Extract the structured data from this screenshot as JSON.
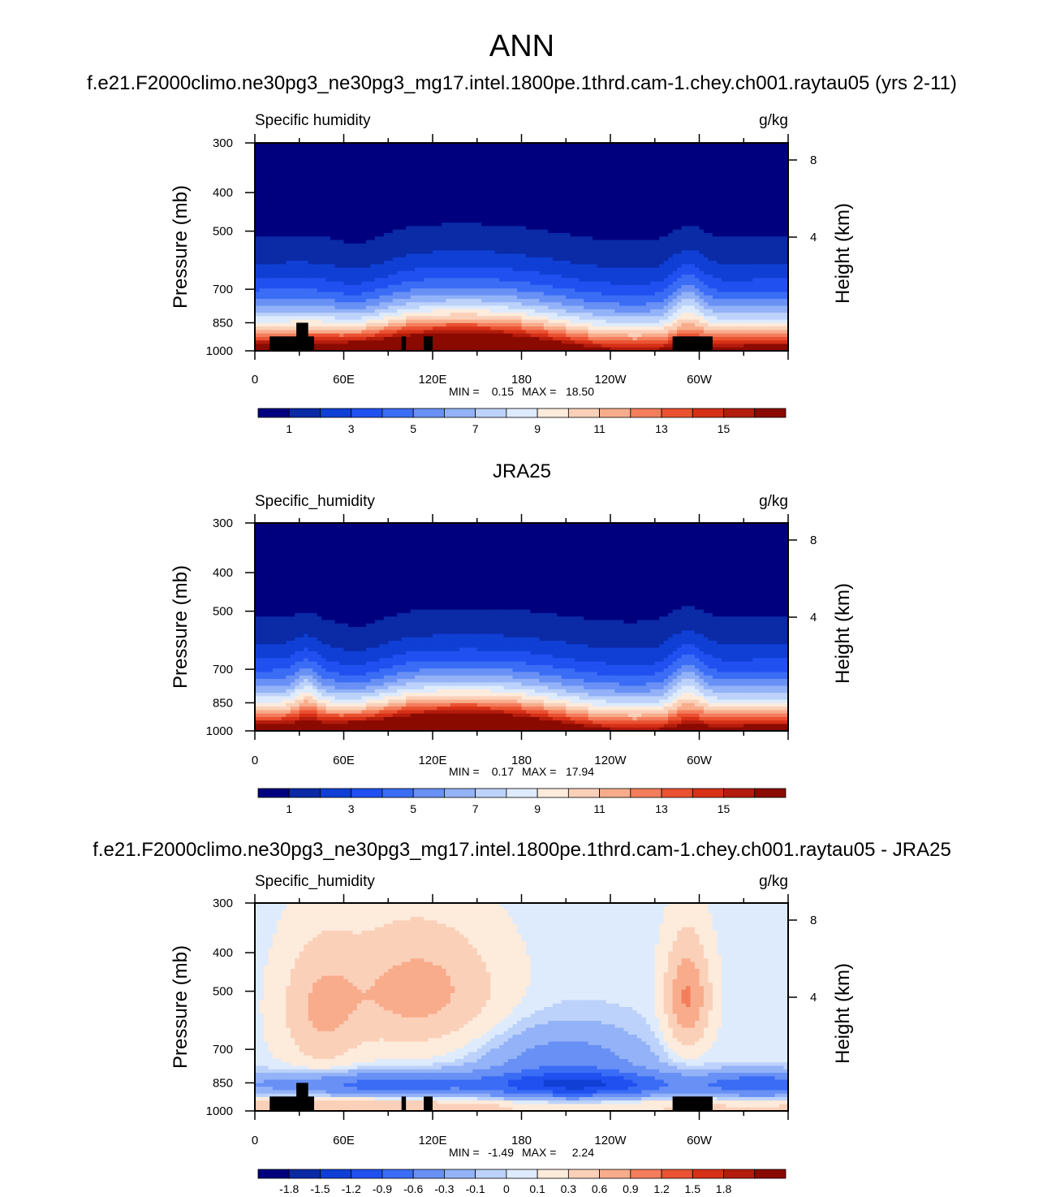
{
  "figure": {
    "title": "ANN"
  },
  "chart_data": [
    {
      "type": "contour",
      "title": "f.e21.F2000climo.ne30pg3_ne30pg3_mg17.intel.1800pe.1thrd.cam-1.chey.ch001.raytau05 (yrs 2-11)",
      "left_string": "Specific humidity",
      "right_string": "g/kg",
      "ylabel": "Pressure (mb)",
      "ylabel_right": "Height (km)",
      "xlim": [
        0,
        360
      ],
      "ylim": [
        1000,
        300
      ],
      "x_tick_labels": [
        "0",
        "60E",
        "120E",
        "180",
        "120W",
        "60W"
      ],
      "y_tick_labels": [
        "300",
        "400",
        "500",
        "700",
        "850",
        "1000"
      ],
      "y_right_tick_labels": [
        "8",
        "4"
      ],
      "min_label": "MIN =",
      "min_value": "0.15",
      "max_label": "MAX =",
      "max_value": "18.50",
      "colorbar_labels": [
        "1",
        "3",
        "5",
        "7",
        "9",
        "11",
        "13",
        "15"
      ],
      "levels": [
        0,
        1,
        2,
        3,
        4,
        5,
        6,
        7,
        8,
        9,
        10,
        11,
        12,
        13,
        14,
        15,
        16
      ]
    },
    {
      "type": "contour",
      "title": "JRA25",
      "left_string": "Specific_humidity",
      "right_string": "g/kg",
      "ylabel": "Pressure (mb)",
      "ylabel_right": "Height (km)",
      "xlim": [
        0,
        360
      ],
      "ylim": [
        1000,
        300
      ],
      "x_tick_labels": [
        "0",
        "60E",
        "120E",
        "180",
        "120W",
        "60W"
      ],
      "y_tick_labels": [
        "300",
        "400",
        "500",
        "700",
        "850",
        "1000"
      ],
      "y_right_tick_labels": [
        "8",
        "4"
      ],
      "min_label": "MIN =",
      "min_value": "0.17",
      "max_label": "MAX =",
      "max_value": "17.94",
      "colorbar_labels": [
        "1",
        "3",
        "5",
        "7",
        "9",
        "11",
        "13",
        "15"
      ],
      "levels": [
        0,
        1,
        2,
        3,
        4,
        5,
        6,
        7,
        8,
        9,
        10,
        11,
        12,
        13,
        14,
        15,
        16
      ]
    },
    {
      "type": "contour",
      "title": "f.e21.F2000climo.ne30pg3_ne30pg3_mg17.intel.1800pe.1thrd.cam-1.chey.ch001.raytau05 - JRA25",
      "left_string": "Specific_humidity",
      "right_string": "g/kg",
      "ylabel": "Pressure (mb)",
      "ylabel_right": "Height (km)",
      "xlim": [
        0,
        360
      ],
      "ylim": [
        1000,
        300
      ],
      "x_tick_labels": [
        "0",
        "60E",
        "120E",
        "180",
        "120W",
        "60W"
      ],
      "y_tick_labels": [
        "300",
        "400",
        "500",
        "700",
        "850",
        "1000"
      ],
      "y_right_tick_labels": [
        "8",
        "4"
      ],
      "min_label": "MIN =",
      "min_value": "-1.49",
      "max_label": "MAX =",
      "max_value": "2.24",
      "colorbar_labels": [
        "-1.8",
        "-1.5",
        "-1.2",
        "-0.9",
        "-0.6",
        "-0.3",
        "-0.1",
        "0",
        "0.1",
        "0.3",
        "0.6",
        "0.9",
        "1.2",
        "1.5",
        "1.8"
      ],
      "levels": [
        -2.1,
        -1.8,
        -1.5,
        -1.2,
        -0.9,
        -0.6,
        -0.3,
        -0.1,
        0,
        0.1,
        0.3,
        0.6,
        0.9,
        1.2,
        1.5,
        1.8,
        2.1
      ]
    }
  ],
  "colormap": [
    "#00007f",
    "#0a2aa6",
    "#0f3fd4",
    "#2050f0",
    "#3a6cf5",
    "#6890f5",
    "#93b2f7",
    "#bcd2fa",
    "#deebfc",
    "#fdebdc",
    "#fbd0b9",
    "#f8ac8b",
    "#f47d5c",
    "#ea5232",
    "#d63017",
    "#b31c0c",
    "#8a0a00"
  ]
}
